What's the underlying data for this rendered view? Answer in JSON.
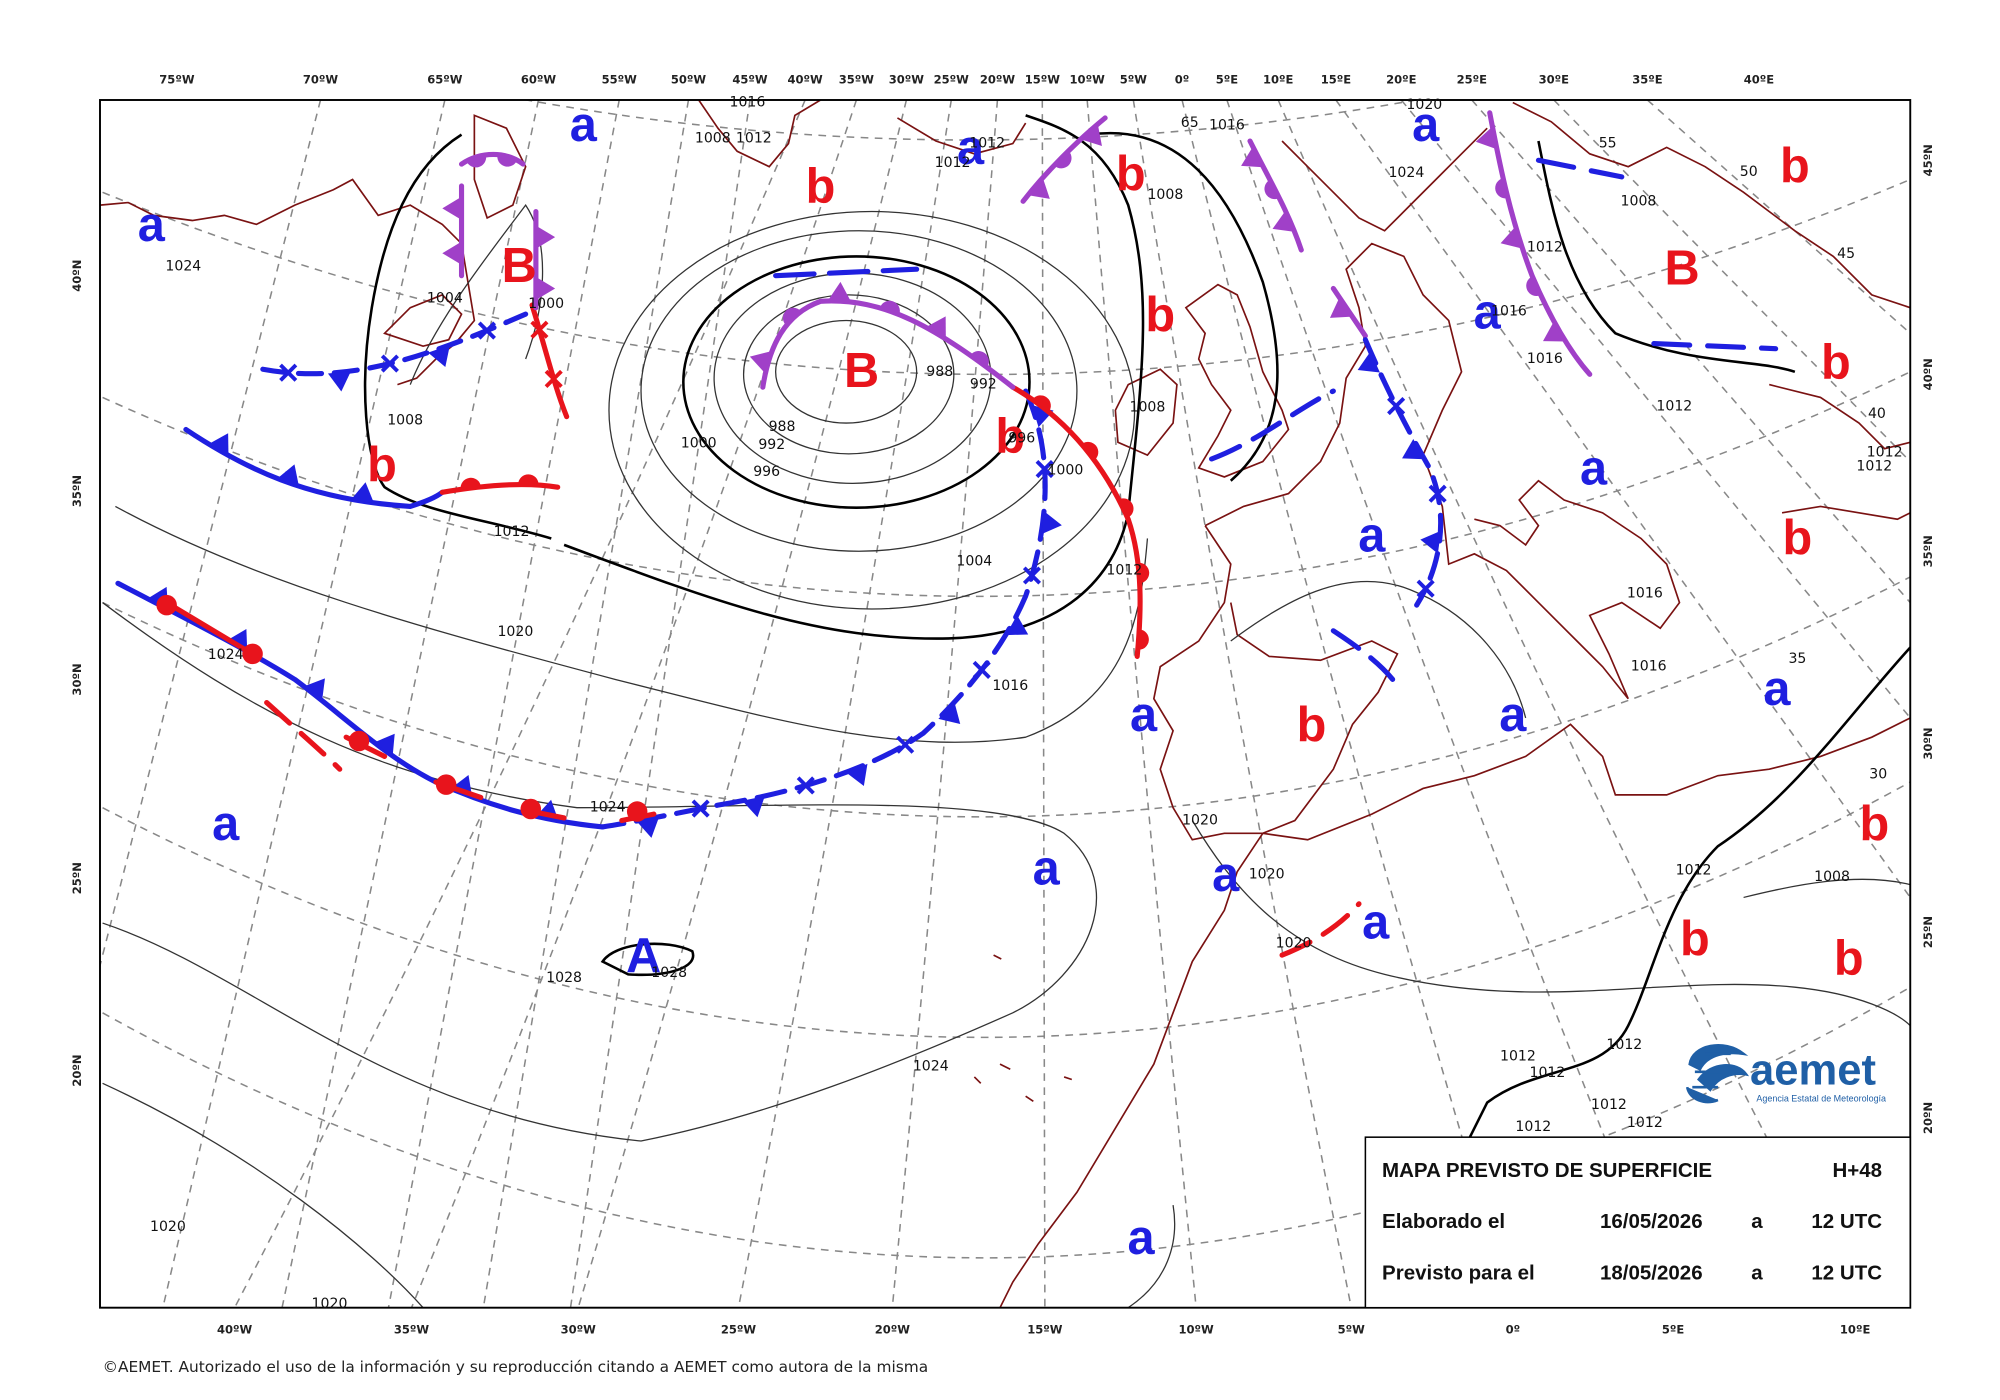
{
  "map": {
    "top_longitude_labels": [
      "75ºW",
      "70ºW",
      "65ºW",
      "60ºW",
      "55ºW",
      "50ºW",
      "45ºW",
      "40ºW",
      "35ºW",
      "30ºW",
      "25ºW",
      "20ºW",
      "15ºW",
      "10ºW",
      "5ºW",
      "0º",
      "5ºE",
      "10ºE",
      "15ºE",
      "20ºE",
      "25ºE",
      "30ºE",
      "35ºE",
      "40ºE"
    ],
    "bottom_longitude_labels": [
      "40ºW",
      "35ºW",
      "30ºW",
      "25ºW",
      "20ºW",
      "15ºW",
      "10ºW",
      "5ºW",
      "0º",
      "5ºE",
      "10ºE"
    ],
    "left_latitude_labels": [
      "40ºN",
      "35ºN",
      "30ºN",
      "25ºN",
      "20ºN"
    ],
    "right_latitude_labels": [
      "45ºN",
      "40ºN",
      "35ºN",
      "30ºN",
      "25ºN",
      "20ºN"
    ],
    "pressure_centers": [
      {
        "label": "a",
        "color": "#1f1fe0"
      },
      {
        "label": "a",
        "color": "#1f1fe0"
      },
      {
        "label": "a",
        "color": "#1f1fe0"
      },
      {
        "label": "b",
        "color": "#e8141c"
      },
      {
        "label": "b",
        "color": "#e8141c"
      },
      {
        "label": "a",
        "color": "#1f1fe0"
      },
      {
        "label": "b",
        "color": "#e8141c"
      },
      {
        "label": "B",
        "color": "#e8141c"
      },
      {
        "label": "B",
        "color": "#e8141c"
      },
      {
        "label": "B",
        "color": "#e8141c"
      },
      {
        "label": "a",
        "color": "#1f1fe0"
      },
      {
        "label": "b",
        "color": "#e8141c"
      },
      {
        "label": "b",
        "color": "#e8141c"
      },
      {
        "label": "b",
        "color": "#e8141c"
      },
      {
        "label": "b",
        "color": "#e8141c"
      },
      {
        "label": "a",
        "color": "#1f1fe0"
      },
      {
        "label": "a",
        "color": "#1f1fe0"
      },
      {
        "label": "b",
        "color": "#e8141c"
      },
      {
        "label": "a",
        "color": "#1f1fe0"
      },
      {
        "label": "b",
        "color": "#e8141c"
      },
      {
        "label": "a",
        "color": "#1f1fe0"
      },
      {
        "label": "a",
        "color": "#1f1fe0"
      },
      {
        "label": "a",
        "color": "#1f1fe0"
      },
      {
        "label": "a",
        "color": "#1f1fe0"
      },
      {
        "label": "a",
        "color": "#1f1fe0"
      },
      {
        "label": "a",
        "color": "#1f1fe0"
      },
      {
        "label": "b",
        "color": "#e8141c"
      },
      {
        "label": "b",
        "color": "#e8141c"
      },
      {
        "label": "b",
        "color": "#e8141c"
      },
      {
        "label": "A",
        "color": "#1f1fe0"
      },
      {
        "label": "a",
        "color": "#1f1fe0"
      }
    ],
    "isobar_labels": [
      1016,
      1008,
      1012,
      1012,
      1012,
      1016,
      1008,
      1024,
      1004,
      1000,
      1008,
      988,
      992,
      988,
      992,
      1000,
      996,
      996,
      1000,
      1012,
      1004,
      1012,
      1020,
      1024,
      1016,
      1024,
      1020,
      1020,
      1020,
      1028,
      1028,
      1024,
      1020,
      1020,
      1008,
      1024,
      1008,
      1012,
      1016,
      1016,
      1012,
      1012,
      1012,
      1016,
      1016,
      1012,
      1008,
      1012,
      1012,
      1012,
      1012,
      1012,
      1012,
      1020
    ],
    "grid_labels": [
      65,
      55,
      50,
      45,
      40,
      35,
      30
    ]
  },
  "info_box": {
    "title": "MAPA PREVISTO DE SUPERFICIE",
    "lead_time": "H+48",
    "rows": [
      [
        "Elaborado el",
        "16/05/2026",
        "a",
        "12 UTC"
      ],
      [
        "Previsto para el",
        "18/05/2026",
        "a",
        "12 UTC"
      ]
    ]
  },
  "logo": {
    "name": "aemet",
    "subtitle": "Agencia Estatal de Meteorología"
  },
  "footer": "©AEMET. Autorizado el uso de la información y su reproducción citando a AEMET como autora de la misma"
}
